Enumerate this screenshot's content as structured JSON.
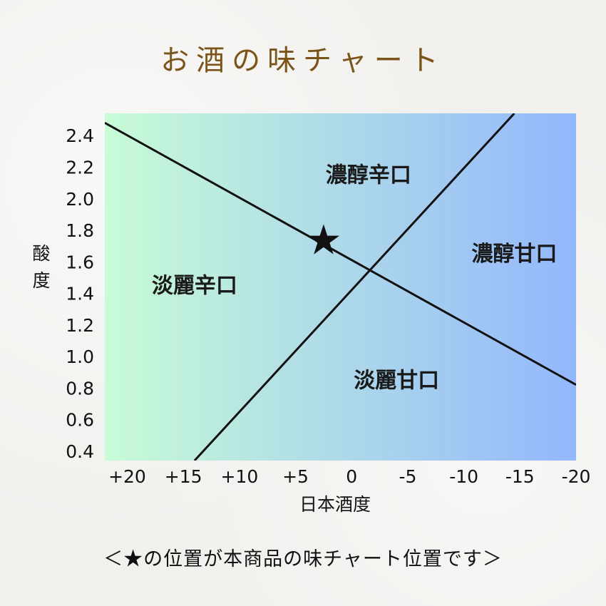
{
  "title": "お酒の味チャート",
  "footer": "＜★の位置が本商品の味チャート位置です＞",
  "chart_data": {
    "type": "scatter",
    "xlabel": "日本酒度",
    "ylabel": "酸度",
    "x_ticks": [
      "+20",
      "+15",
      "+10",
      "+5",
      "0",
      "-5",
      "-10",
      "-15",
      "-20"
    ],
    "x_tick_values": [
      20,
      15,
      10,
      5,
      0,
      -5,
      -10,
      -15,
      -20
    ],
    "y_ticks": [
      "2.4",
      "2.2",
      "2.0",
      "1.8",
      "1.6",
      "1.4",
      "1.2",
      "1.0",
      "0.8",
      "0.6",
      "0.4"
    ],
    "y_tick_values": [
      2.4,
      2.2,
      2.0,
      1.8,
      1.6,
      1.4,
      1.2,
      1.0,
      0.8,
      0.6,
      0.4
    ],
    "xlim": [
      22,
      -20
    ],
    "ylim": [
      0.35,
      2.55
    ],
    "x_reversed": true,
    "background_gradient": [
      "#c8fbd6",
      "#93b7fc"
    ],
    "regions": [
      {
        "label": "濃醇辛口",
        "x": -1.5,
        "y": 2.15
      },
      {
        "label": "濃醇甘口",
        "x": -14.5,
        "y": 1.65
      },
      {
        "label": "淡麗辛口",
        "x": 14,
        "y": 1.45
      },
      {
        "label": "淡麗甘口",
        "x": -4,
        "y": 0.85
      }
    ],
    "lines": [
      {
        "points": [
          [
            22,
            2.49
          ],
          [
            -20,
            0.83
          ]
        ]
      },
      {
        "points": [
          [
            14,
            0.35
          ],
          [
            -14.5,
            2.55
          ]
        ]
      }
    ],
    "marker": {
      "symbol": "★",
      "x": 2.5,
      "y": 1.73
    }
  }
}
